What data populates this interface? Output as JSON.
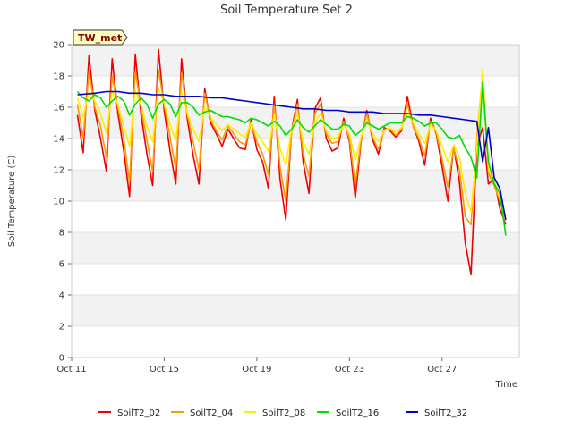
{
  "chart_data": {
    "type": "line",
    "title": "Soil Temperature Set 2",
    "xlabel": "Time",
    "ylabel": "Soil Temperature (C)",
    "ylim": [
      0,
      20
    ],
    "yticks": [
      0,
      2,
      4,
      6,
      8,
      10,
      12,
      14,
      16,
      18,
      20
    ],
    "xlim": [
      "2023-10-11",
      "2023-10-30 08:00"
    ],
    "xticks": [
      "Oct 11",
      "Oct 15",
      "Oct 19",
      "Oct 23",
      "Oct 27"
    ],
    "x_tick_dates": [
      "2023-10-11",
      "2023-10-15",
      "2023-10-19",
      "2023-10-23",
      "2023-10-27"
    ],
    "grid": "horizontal bands",
    "legend_position": "bottom",
    "annotation": "TW_met",
    "series": [
      {
        "name": "SoilT2_02",
        "color": "#ee0000",
        "x": [
          "2023-10-11 06:00",
          "2023-10-11 12:00",
          "2023-10-11 18:00",
          "2023-10-12 00:00",
          "2023-10-12 06:00",
          "2023-10-12 12:00",
          "2023-10-12 18:00",
          "2023-10-13 00:00",
          "2023-10-13 06:00",
          "2023-10-13 12:00",
          "2023-10-13 18:00",
          "2023-10-14 00:00",
          "2023-10-14 06:00",
          "2023-10-14 12:00",
          "2023-10-14 18:00",
          "2023-10-15 00:00",
          "2023-10-15 06:00",
          "2023-10-15 12:00",
          "2023-10-15 18:00",
          "2023-10-16 00:00",
          "2023-10-16 06:00",
          "2023-10-16 12:00",
          "2023-10-16 18:00",
          "2023-10-17 00:00",
          "2023-10-17 06:00",
          "2023-10-17 12:00",
          "2023-10-17 18:00",
          "2023-10-18 00:00",
          "2023-10-18 06:00",
          "2023-10-18 12:00",
          "2023-10-18 18:00",
          "2023-10-19 00:00",
          "2023-10-19 06:00",
          "2023-10-19 12:00",
          "2023-10-19 18:00",
          "2023-10-20 00:00",
          "2023-10-20 06:00",
          "2023-10-20 12:00",
          "2023-10-20 18:00",
          "2023-10-21 00:00",
          "2023-10-21 06:00",
          "2023-10-21 12:00",
          "2023-10-21 18:00",
          "2023-10-22 00:00",
          "2023-10-22 06:00",
          "2023-10-22 12:00",
          "2023-10-22 18:00",
          "2023-10-23 00:00",
          "2023-10-23 06:00",
          "2023-10-23 12:00",
          "2023-10-23 18:00",
          "2023-10-24 00:00",
          "2023-10-24 06:00",
          "2023-10-24 12:00",
          "2023-10-24 18:00",
          "2023-10-25 00:00",
          "2023-10-25 06:00",
          "2023-10-25 12:00",
          "2023-10-25 18:00",
          "2023-10-26 00:00",
          "2023-10-26 06:00",
          "2023-10-26 12:00",
          "2023-10-26 18:00",
          "2023-10-27 00:00",
          "2023-10-27 06:00",
          "2023-10-27 12:00",
          "2023-10-27 18:00",
          "2023-10-28 00:00",
          "2023-10-28 06:00",
          "2023-10-28 12:00",
          "2023-10-28 18:00",
          "2023-10-29 00:00",
          "2023-10-29 06:00",
          "2023-10-29 12:00",
          "2023-10-29 18:00"
        ],
        "y": [
          15.5,
          13.1,
          19.3,
          15.8,
          14.0,
          11.9,
          19.1,
          15.6,
          13.2,
          10.3,
          19.4,
          15.5,
          13.0,
          11.0,
          19.7,
          15.8,
          13.2,
          11.1,
          19.1,
          15.2,
          12.9,
          11.1,
          17.2,
          15.0,
          14.3,
          13.5,
          14.6,
          14.0,
          13.4,
          13.3,
          15.2,
          13.3,
          12.5,
          10.8,
          16.7,
          11.4,
          8.8,
          14.5,
          16.5,
          12.5,
          10.5,
          15.9,
          16.6,
          14.0,
          13.2,
          13.4,
          15.3,
          13.8,
          10.2,
          13.8,
          15.8,
          13.9,
          13.0,
          14.7,
          14.5,
          14.1,
          14.5,
          16.7,
          14.8,
          13.8,
          12.3,
          15.3,
          14.3,
          12.2,
          10.0,
          13.5,
          11.2,
          7.3,
          5.3,
          13.5,
          14.7,
          11.1,
          11.4,
          9.5,
          8.5
        ]
      },
      {
        "name": "SoilT2_04",
        "color": "#ff9900",
        "x": [
          "2023-10-11 06:00",
          "2023-10-11 12:00",
          "2023-10-11 18:00",
          "2023-10-12 00:00",
          "2023-10-12 06:00",
          "2023-10-12 12:00",
          "2023-10-12 18:00",
          "2023-10-13 00:00",
          "2023-10-13 06:00",
          "2023-10-13 12:00",
          "2023-10-13 18:00",
          "2023-10-14 00:00",
          "2023-10-14 06:00",
          "2023-10-14 12:00",
          "2023-10-14 18:00",
          "2023-10-15 00:00",
          "2023-10-15 06:00",
          "2023-10-15 12:00",
          "2023-10-15 18:00",
          "2023-10-16 00:00",
          "2023-10-16 06:00",
          "2023-10-16 12:00",
          "2023-10-16 18:00",
          "2023-10-17 00:00",
          "2023-10-17 06:00",
          "2023-10-17 12:00",
          "2023-10-17 18:00",
          "2023-10-18 00:00",
          "2023-10-18 06:00",
          "2023-10-18 12:00",
          "2023-10-18 18:00",
          "2023-10-19 00:00",
          "2023-10-19 06:00",
          "2023-10-19 12:00",
          "2023-10-19 18:00",
          "2023-10-20 00:00",
          "2023-10-20 06:00",
          "2023-10-20 12:00",
          "2023-10-20 18:00",
          "2023-10-21 00:00",
          "2023-10-21 06:00",
          "2023-10-21 12:00",
          "2023-10-21 18:00",
          "2023-10-22 00:00",
          "2023-10-22 06:00",
          "2023-10-22 12:00",
          "2023-10-22 18:00",
          "2023-10-23 00:00",
          "2023-10-23 06:00",
          "2023-10-23 12:00",
          "2023-10-23 18:00",
          "2023-10-24 00:00",
          "2023-10-24 06:00",
          "2023-10-24 12:00",
          "2023-10-24 18:00",
          "2023-10-25 00:00",
          "2023-10-25 06:00",
          "2023-10-25 12:00",
          "2023-10-25 18:00",
          "2023-10-26 00:00",
          "2023-10-26 06:00",
          "2023-10-26 12:00",
          "2023-10-26 18:00",
          "2023-10-27 00:00",
          "2023-10-27 06:00",
          "2023-10-27 12:00",
          "2023-10-27 18:00",
          "2023-10-28 00:00",
          "2023-10-28 06:00",
          "2023-10-28 12:00",
          "2023-10-28 18:00",
          "2023-10-29 00:00",
          "2023-10-29 06:00",
          "2023-10-29 12:00",
          "2023-10-29 18:00"
        ],
        "y": [
          16.2,
          14.0,
          18.3,
          16.0,
          14.8,
          12.8,
          18.0,
          16.0,
          14.0,
          11.2,
          18.3,
          16.0,
          13.9,
          11.9,
          18.4,
          16.2,
          14.1,
          12.0,
          18.2,
          15.5,
          13.8,
          12.0,
          16.9,
          15.2,
          14.5,
          13.9,
          14.8,
          14.3,
          13.8,
          13.6,
          15.0,
          13.8,
          13.0,
          11.7,
          16.2,
          12.2,
          10.0,
          14.4,
          16.2,
          13.0,
          11.6,
          15.6,
          16.2,
          14.3,
          13.7,
          13.8,
          15.1,
          14.0,
          11.0,
          13.9,
          15.6,
          14.1,
          13.3,
          14.6,
          14.6,
          14.2,
          14.6,
          16.2,
          14.8,
          14.0,
          12.9,
          15.1,
          14.4,
          12.7,
          10.9,
          13.4,
          12.0,
          9.0,
          8.5,
          14.0,
          18.2,
          11.8,
          11.0,
          10.0,
          8.8
        ]
      },
      {
        "name": "SoilT2_08",
        "color": "#ffee00",
        "x": [
          "2023-10-11 06:00",
          "2023-10-11 12:00",
          "2023-10-11 18:00",
          "2023-10-12 00:00",
          "2023-10-12 06:00",
          "2023-10-12 12:00",
          "2023-10-12 18:00",
          "2023-10-13 00:00",
          "2023-10-13 06:00",
          "2023-10-13 12:00",
          "2023-10-13 18:00",
          "2023-10-14 00:00",
          "2023-10-14 06:00",
          "2023-10-14 12:00",
          "2023-10-14 18:00",
          "2023-10-15 00:00",
          "2023-10-15 06:00",
          "2023-10-15 12:00",
          "2023-10-15 18:00",
          "2023-10-16 00:00",
          "2023-10-16 06:00",
          "2023-10-16 12:00",
          "2023-10-16 18:00",
          "2023-10-17 00:00",
          "2023-10-17 06:00",
          "2023-10-17 12:00",
          "2023-10-17 18:00",
          "2023-10-18 00:00",
          "2023-10-18 06:00",
          "2023-10-18 12:00",
          "2023-10-18 18:00",
          "2023-10-19 00:00",
          "2023-10-19 06:00",
          "2023-10-19 12:00",
          "2023-10-19 18:00",
          "2023-10-20 00:00",
          "2023-10-20 06:00",
          "2023-10-20 12:00",
          "2023-10-20 18:00",
          "2023-10-21 00:00",
          "2023-10-21 06:00",
          "2023-10-21 12:00",
          "2023-10-21 18:00",
          "2023-10-22 00:00",
          "2023-10-22 06:00",
          "2023-10-22 12:00",
          "2023-10-22 18:00",
          "2023-10-23 00:00",
          "2023-10-23 06:00",
          "2023-10-23 12:00",
          "2023-10-23 18:00",
          "2023-10-24 00:00",
          "2023-10-24 06:00",
          "2023-10-24 12:00",
          "2023-10-24 18:00",
          "2023-10-25 00:00",
          "2023-10-25 06:00",
          "2023-10-25 12:00",
          "2023-10-25 18:00",
          "2023-10-26 00:00",
          "2023-10-26 06:00",
          "2023-10-26 12:00",
          "2023-10-26 18:00",
          "2023-10-27 00:00",
          "2023-10-27 06:00",
          "2023-10-27 12:00",
          "2023-10-27 18:00",
          "2023-10-28 00:00",
          "2023-10-28 06:00",
          "2023-10-28 12:00",
          "2023-10-28 18:00",
          "2023-10-29 00:00",
          "2023-10-29 06:00",
          "2023-10-29 12:00",
          "2023-10-29 18:00"
        ],
        "y": [
          16.6,
          15.4,
          17.0,
          16.4,
          15.6,
          14.4,
          17.0,
          16.2,
          14.8,
          13.5,
          17.1,
          16.1,
          14.8,
          13.8,
          17.2,
          16.2,
          14.9,
          13.9,
          17.0,
          15.6,
          14.6,
          13.8,
          16.0,
          15.4,
          14.9,
          14.5,
          14.9,
          14.6,
          14.3,
          14.1,
          15.0,
          14.3,
          13.8,
          13.2,
          15.6,
          13.4,
          12.3,
          14.6,
          15.6,
          13.8,
          13.0,
          15.0,
          15.6,
          14.5,
          14.0,
          14.1,
          14.9,
          14.3,
          12.6,
          14.1,
          15.2,
          14.3,
          13.8,
          14.5,
          14.7,
          14.4,
          14.7,
          15.6,
          15.0,
          14.3,
          13.7,
          14.9,
          14.5,
          13.5,
          12.5,
          13.6,
          12.8,
          10.5,
          9.3,
          13.5,
          18.4,
          12.0,
          11.3,
          10.3,
          9.0
        ]
      },
      {
        "name": "SoilT2_16",
        "color": "#00dd00",
        "x": [
          "2023-10-11 06:00",
          "2023-10-11 12:00",
          "2023-10-11 18:00",
          "2023-10-12 00:00",
          "2023-10-12 06:00",
          "2023-10-12 12:00",
          "2023-10-12 18:00",
          "2023-10-13 00:00",
          "2023-10-13 06:00",
          "2023-10-13 12:00",
          "2023-10-13 18:00",
          "2023-10-14 00:00",
          "2023-10-14 06:00",
          "2023-10-14 12:00",
          "2023-10-14 18:00",
          "2023-10-15 00:00",
          "2023-10-15 06:00",
          "2023-10-15 12:00",
          "2023-10-15 18:00",
          "2023-10-16 00:00",
          "2023-10-16 06:00",
          "2023-10-16 12:00",
          "2023-10-16 18:00",
          "2023-10-17 00:00",
          "2023-10-17 06:00",
          "2023-10-17 12:00",
          "2023-10-17 18:00",
          "2023-10-18 00:00",
          "2023-10-18 06:00",
          "2023-10-18 12:00",
          "2023-10-18 18:00",
          "2023-10-19 00:00",
          "2023-10-19 06:00",
          "2023-10-19 12:00",
          "2023-10-19 18:00",
          "2023-10-20 00:00",
          "2023-10-20 06:00",
          "2023-10-20 12:00",
          "2023-10-20 18:00",
          "2023-10-21 00:00",
          "2023-10-21 06:00",
          "2023-10-21 12:00",
          "2023-10-21 18:00",
          "2023-10-22 00:00",
          "2023-10-22 06:00",
          "2023-10-22 12:00",
          "2023-10-22 18:00",
          "2023-10-23 00:00",
          "2023-10-23 06:00",
          "2023-10-23 12:00",
          "2023-10-23 18:00",
          "2023-10-24 00:00",
          "2023-10-24 06:00",
          "2023-10-24 12:00",
          "2023-10-24 18:00",
          "2023-10-25 00:00",
          "2023-10-25 06:00",
          "2023-10-25 12:00",
          "2023-10-25 18:00",
          "2023-10-26 00:00",
          "2023-10-26 06:00",
          "2023-10-26 12:00",
          "2023-10-26 18:00",
          "2023-10-27 00:00",
          "2023-10-27 06:00",
          "2023-10-27 12:00",
          "2023-10-27 18:00",
          "2023-10-28 00:00",
          "2023-10-28 06:00",
          "2023-10-28 12:00",
          "2023-10-28 18:00",
          "2023-10-29 00:00",
          "2023-10-29 06:00",
          "2023-10-29 12:00",
          "2023-10-29 18:00"
        ],
        "y": [
          17.0,
          16.6,
          16.4,
          16.8,
          16.6,
          16.0,
          16.4,
          16.7,
          16.4,
          15.5,
          16.2,
          16.6,
          16.2,
          15.3,
          16.2,
          16.5,
          16.2,
          15.4,
          16.3,
          16.3,
          16.0,
          15.5,
          15.7,
          15.8,
          15.6,
          15.4,
          15.4,
          15.3,
          15.2,
          15.0,
          15.3,
          15.2,
          15.0,
          14.8,
          15.1,
          14.8,
          14.2,
          14.6,
          15.2,
          14.7,
          14.4,
          14.8,
          15.2,
          14.9,
          14.6,
          14.6,
          14.9,
          14.8,
          14.2,
          14.5,
          15.0,
          14.8,
          14.6,
          14.8,
          15.0,
          15.0,
          15.0,
          15.4,
          15.3,
          15.1,
          14.8,
          15.0,
          15.0,
          14.6,
          14.1,
          14.0,
          14.2,
          13.4,
          12.8,
          11.5,
          17.6,
          12.5,
          11.1,
          10.5,
          7.8
        ]
      },
      {
        "name": "SoilT2_32",
        "color": "#0000cc",
        "x": [
          "2023-10-11 06:00",
          "2023-10-12 00:00",
          "2023-10-12 12:00",
          "2023-10-13 00:00",
          "2023-10-13 12:00",
          "2023-10-14 00:00",
          "2023-10-14 12:00",
          "2023-10-15 00:00",
          "2023-10-15 12:00",
          "2023-10-16 00:00",
          "2023-10-16 12:00",
          "2023-10-17 00:00",
          "2023-10-17 12:00",
          "2023-10-18 00:00",
          "2023-10-18 12:00",
          "2023-10-19 00:00",
          "2023-10-19 12:00",
          "2023-10-20 00:00",
          "2023-10-20 12:00",
          "2023-10-21 00:00",
          "2023-10-21 12:00",
          "2023-10-22 00:00",
          "2023-10-22 12:00",
          "2023-10-23 00:00",
          "2023-10-23 12:00",
          "2023-10-24 00:00",
          "2023-10-24 12:00",
          "2023-10-25 00:00",
          "2023-10-25 12:00",
          "2023-10-26 00:00",
          "2023-10-26 12:00",
          "2023-10-27 00:00",
          "2023-10-27 12:00",
          "2023-10-28 00:00",
          "2023-10-28 12:00",
          "2023-10-28 18:00",
          "2023-10-29 00:00",
          "2023-10-29 06:00",
          "2023-10-29 12:00",
          "2023-10-29 18:00"
        ],
        "y": [
          16.8,
          16.9,
          17.0,
          17.0,
          16.9,
          16.9,
          16.8,
          16.8,
          16.7,
          16.7,
          16.7,
          16.6,
          16.6,
          16.5,
          16.4,
          16.3,
          16.2,
          16.1,
          16.0,
          15.9,
          15.9,
          15.8,
          15.8,
          15.7,
          15.7,
          15.7,
          15.6,
          15.6,
          15.6,
          15.5,
          15.5,
          15.4,
          15.3,
          15.2,
          15.1,
          12.5,
          14.7,
          11.5,
          10.8,
          8.8
        ]
      }
    ]
  }
}
